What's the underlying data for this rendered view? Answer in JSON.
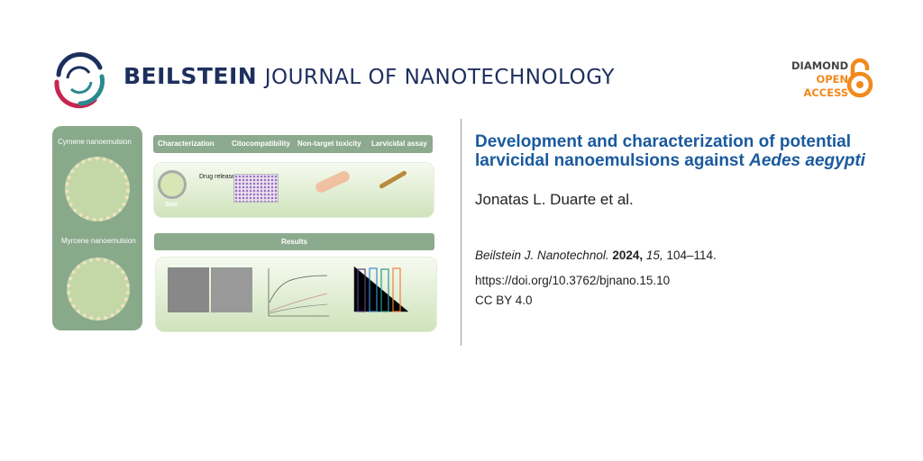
{
  "header": {
    "brand_bold": "BEILSTEIN",
    "brand_rest": "JOURNAL OF NANOTECHNOLOGY",
    "badge": {
      "line1": "DIAMOND",
      "line2": "OPEN",
      "line3": "ACCESS"
    },
    "colors": {
      "brand": "#1d2f5e",
      "accent_red": "#c8244f",
      "accent_teal": "#2a8a8e",
      "open_access": "#f08a1c"
    }
  },
  "graphical_abstract": {
    "left_panel": {
      "cymene": "Cymene nanoemulsion",
      "myrcene": "Myrcene nanoemulsion"
    },
    "steps": [
      "Characterization",
      "Citocompatibility",
      "Non-target toxicity",
      "Larvicidal assay"
    ],
    "drug_release": "Drug release",
    "size": "Size",
    "results": "Results"
  },
  "article": {
    "title_main": "Development and characterization of poten­tial larvicidal nanoemulsions against ",
    "title_italic": "Aedes aegypti",
    "authors": "Jonatas L. Duarte et al.",
    "journal": "Beilstein J. Nanotechnol.",
    "year": "2024,",
    "volume": "15,",
    "pages": "104–114.",
    "doi": "https://doi.org/10.3762/bjnano.15.10",
    "license": "CC BY 4.0",
    "title_color": "#1a5a9e"
  }
}
